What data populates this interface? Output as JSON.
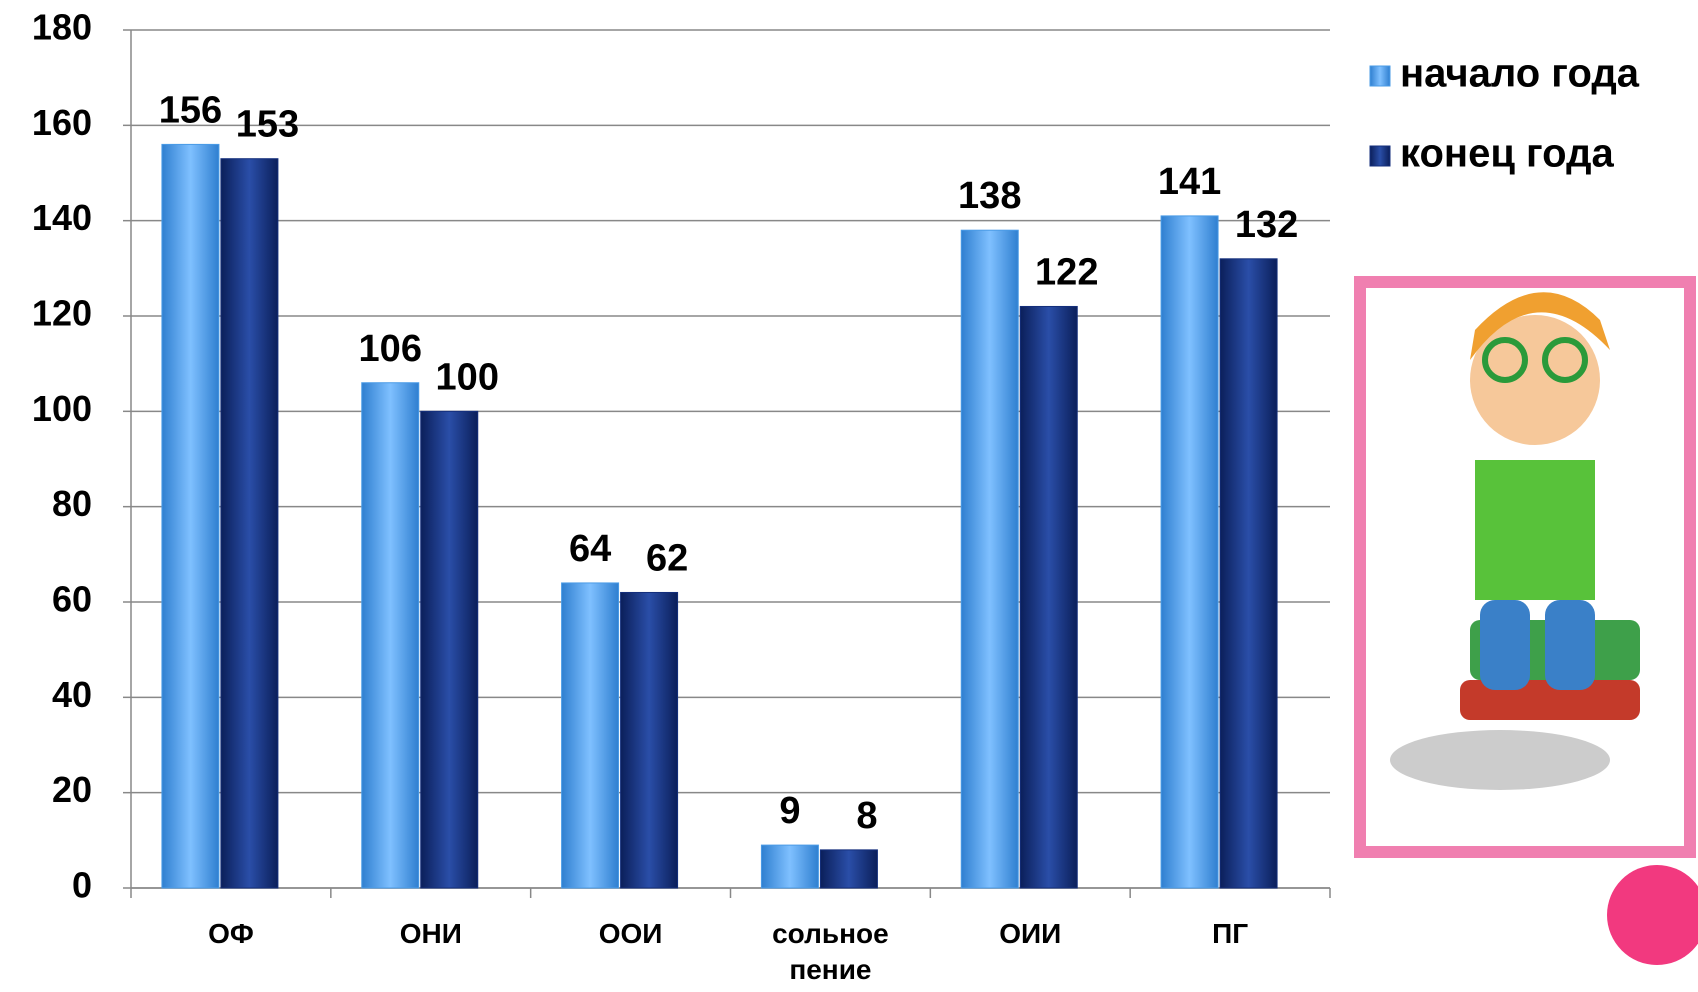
{
  "chart_data": {
    "type": "bar",
    "categories": [
      "ОФ",
      "ОНИ",
      "ООИ",
      "сольное пение",
      "ОИИ",
      "ПГ"
    ],
    "series": [
      {
        "name": "начало года",
        "color": "#4a9be6",
        "values": [
          156,
          106,
          64,
          9,
          138,
          141
        ]
      },
      {
        "name": "конец года",
        "color": "#142f7c",
        "values": [
          153,
          100,
          62,
          8,
          122,
          132
        ]
      }
    ],
    "ylim": [
      0,
      180
    ],
    "yticks": [
      0,
      20,
      40,
      60,
      80,
      100,
      120,
      140,
      160,
      180
    ],
    "grid": true
  }
}
